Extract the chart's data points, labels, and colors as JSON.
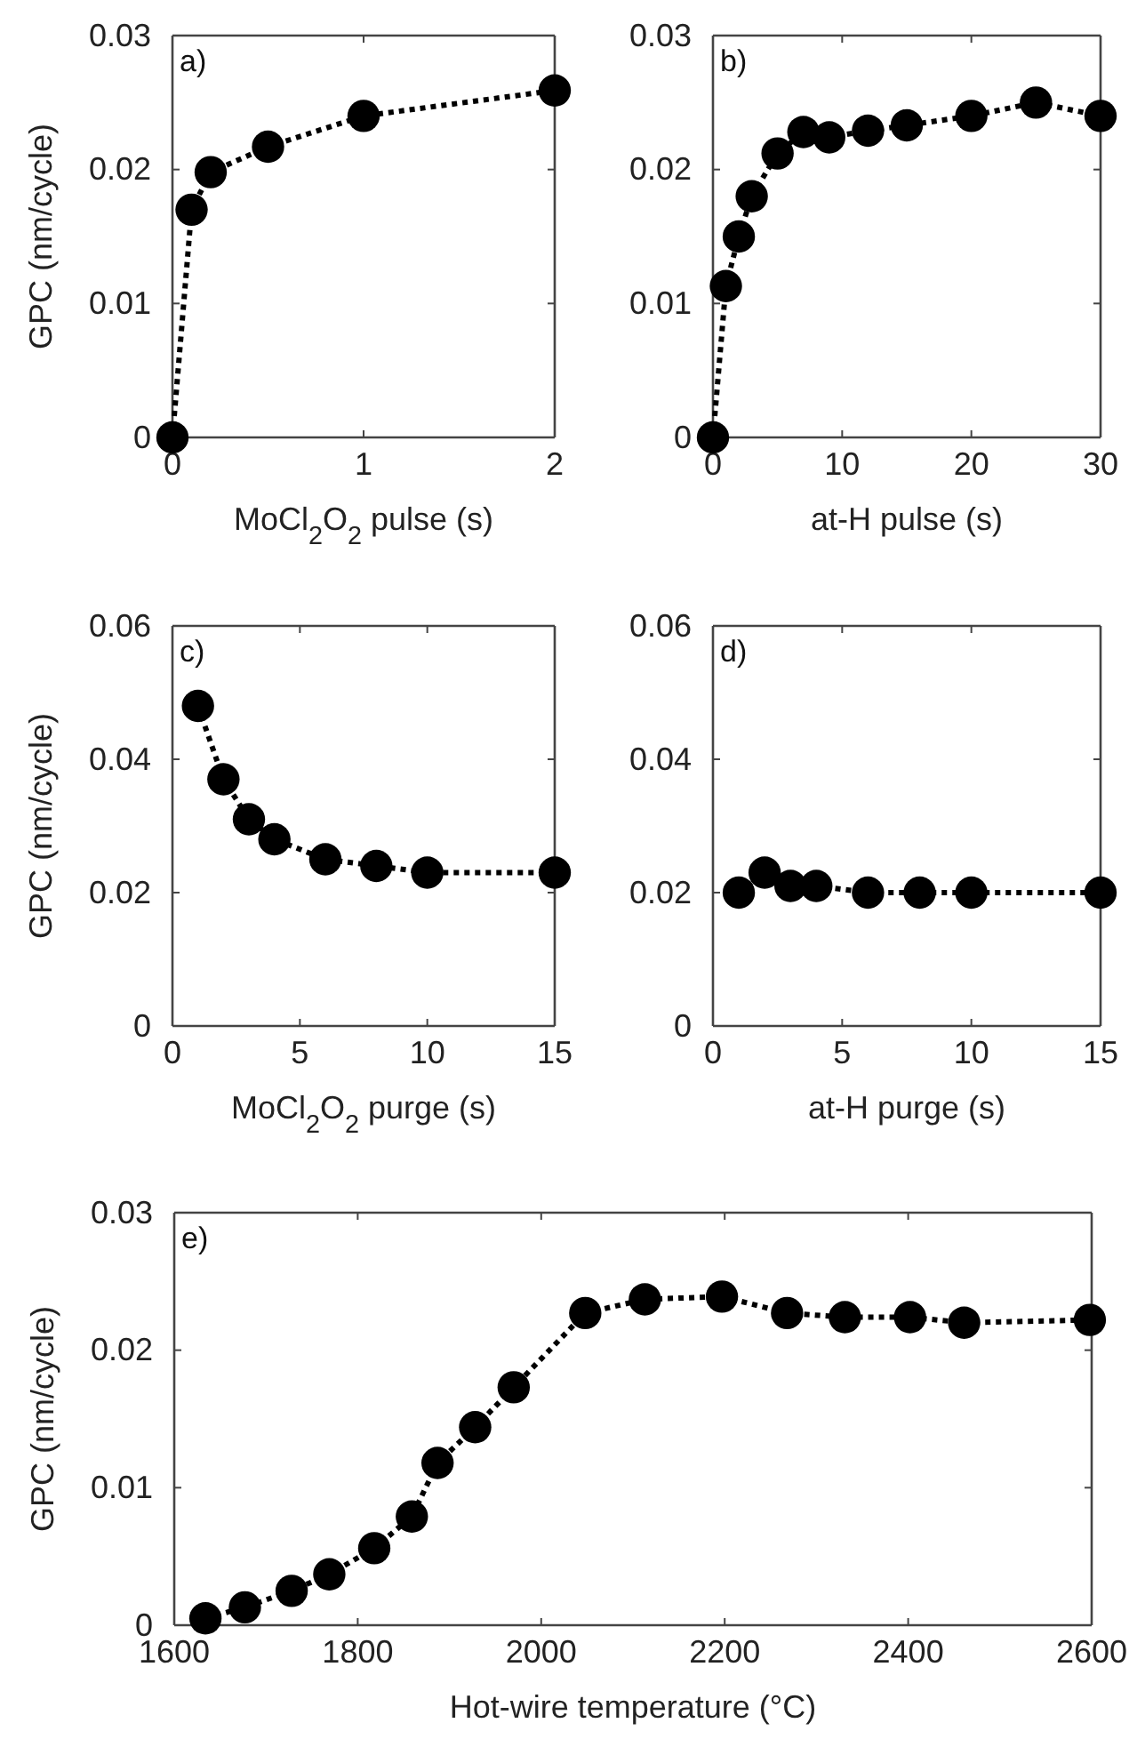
{
  "chart_data": [
    {
      "type": "line",
      "xlabel": "MoCl$_{2}$O$_{2}$ pulse (s)",
      "ylabel": "GPC (nm/cycle)",
      "annotations": [
        "a)"
      ],
      "x": [
        0,
        0.1,
        0.2,
        0.5,
        1,
        2
      ],
      "series": [
        {
          "color": "#000000",
          "values": [
            0,
            0.017,
            0.0198,
            0.0217,
            0.024,
            0.0259
          ]
        }
      ],
      "xlim": [
        0,
        2
      ],
      "xticks": [
        0,
        1,
        2
      ],
      "ylim": [
        0,
        0.03
      ],
      "yticks": [
        0,
        0.01,
        0.02,
        0.03
      ],
      "marker": "circle",
      "line_style": "dotted",
      "grid": false
    },
    {
      "type": "line",
      "xlabel": "at-H pulse (s)",
      "annotations": [
        "b)"
      ],
      "x": [
        0,
        1,
        2,
        3,
        5,
        7,
        9,
        12,
        15,
        20,
        25,
        30
      ],
      "series": [
        {
          "color": "#000000",
          "values": [
            0,
            0.0113,
            0.015,
            0.018,
            0.0212,
            0.0228,
            0.0224,
            0.0229,
            0.0233,
            0.024,
            0.025,
            0.024
          ]
        }
      ],
      "xlim": [
        0,
        30
      ],
      "xticks": [
        0,
        10,
        20,
        30
      ],
      "ylim": [
        0,
        0.03
      ],
      "yticks": [
        0,
        0.01,
        0.02,
        0.03
      ],
      "marker": "circle",
      "line_style": "dotted",
      "grid": false
    },
    {
      "type": "line",
      "xlabel": "MoCl$_{2}$O$_{2}$ purge (s)",
      "ylabel": "GPC (nm/cycle)",
      "annotations": [
        "c)"
      ],
      "x": [
        1,
        2,
        3,
        4,
        6,
        8,
        10,
        15
      ],
      "series": [
        {
          "color": "#000000",
          "values": [
            0.048,
            0.037,
            0.031,
            0.028,
            0.025,
            0.024,
            0.023,
            0.023
          ]
        }
      ],
      "xlim": [
        0,
        15
      ],
      "xticks": [
        0,
        5,
        10,
        15
      ],
      "ylim": [
        0,
        0.06
      ],
      "yticks": [
        0,
        0.02,
        0.04,
        0.06
      ],
      "marker": "circle",
      "line_style": "dotted",
      "grid": false
    },
    {
      "type": "line",
      "xlabel": "at-H purge (s)",
      "annotations": [
        "d)"
      ],
      "x": [
        1,
        2,
        3,
        4,
        6,
        8,
        10,
        15
      ],
      "series": [
        {
          "color": "#000000",
          "values": [
            0.02,
            0.023,
            0.021,
            0.021,
            0.02,
            0.02,
            0.02,
            0.02
          ]
        }
      ],
      "xlim": [
        0,
        15
      ],
      "xticks": [
        0,
        5,
        10,
        15
      ],
      "ylim": [
        0,
        0.06
      ],
      "yticks": [
        0,
        0.02,
        0.04,
        0.06
      ],
      "marker": "circle",
      "line_style": "dotted",
      "grid": false
    },
    {
      "type": "line",
      "xlabel": "Hot-wire temperature (°C)",
      "ylabel": "GPC (nm/cycle)",
      "annotations": [
        "e)"
      ],
      "x": [
        1634,
        1677,
        1728,
        1769,
        1818,
        1859,
        1887,
        1928,
        1970,
        2048,
        2113,
        2197,
        2268,
        2331,
        2402,
        2461,
        2598
      ],
      "series": [
        {
          "color": "#000000",
          "values": [
            0.0005,
            0.0013,
            0.0025,
            0.0037,
            0.0056,
            0.0079,
            0.0118,
            0.0144,
            0.0173,
            0.0227,
            0.0237,
            0.0239,
            0.0227,
            0.0224,
            0.0224,
            0.022,
            0.0222
          ]
        }
      ],
      "xlim": [
        1600,
        2600
      ],
      "xticks": [
        1600,
        1800,
        2000,
        2200,
        2400,
        2600
      ],
      "ylim": [
        0,
        0.03
      ],
      "yticks": [
        0,
        0.01,
        0.02,
        0.03
      ],
      "marker": "circle",
      "line_style": "dotted",
      "grid": false
    }
  ]
}
